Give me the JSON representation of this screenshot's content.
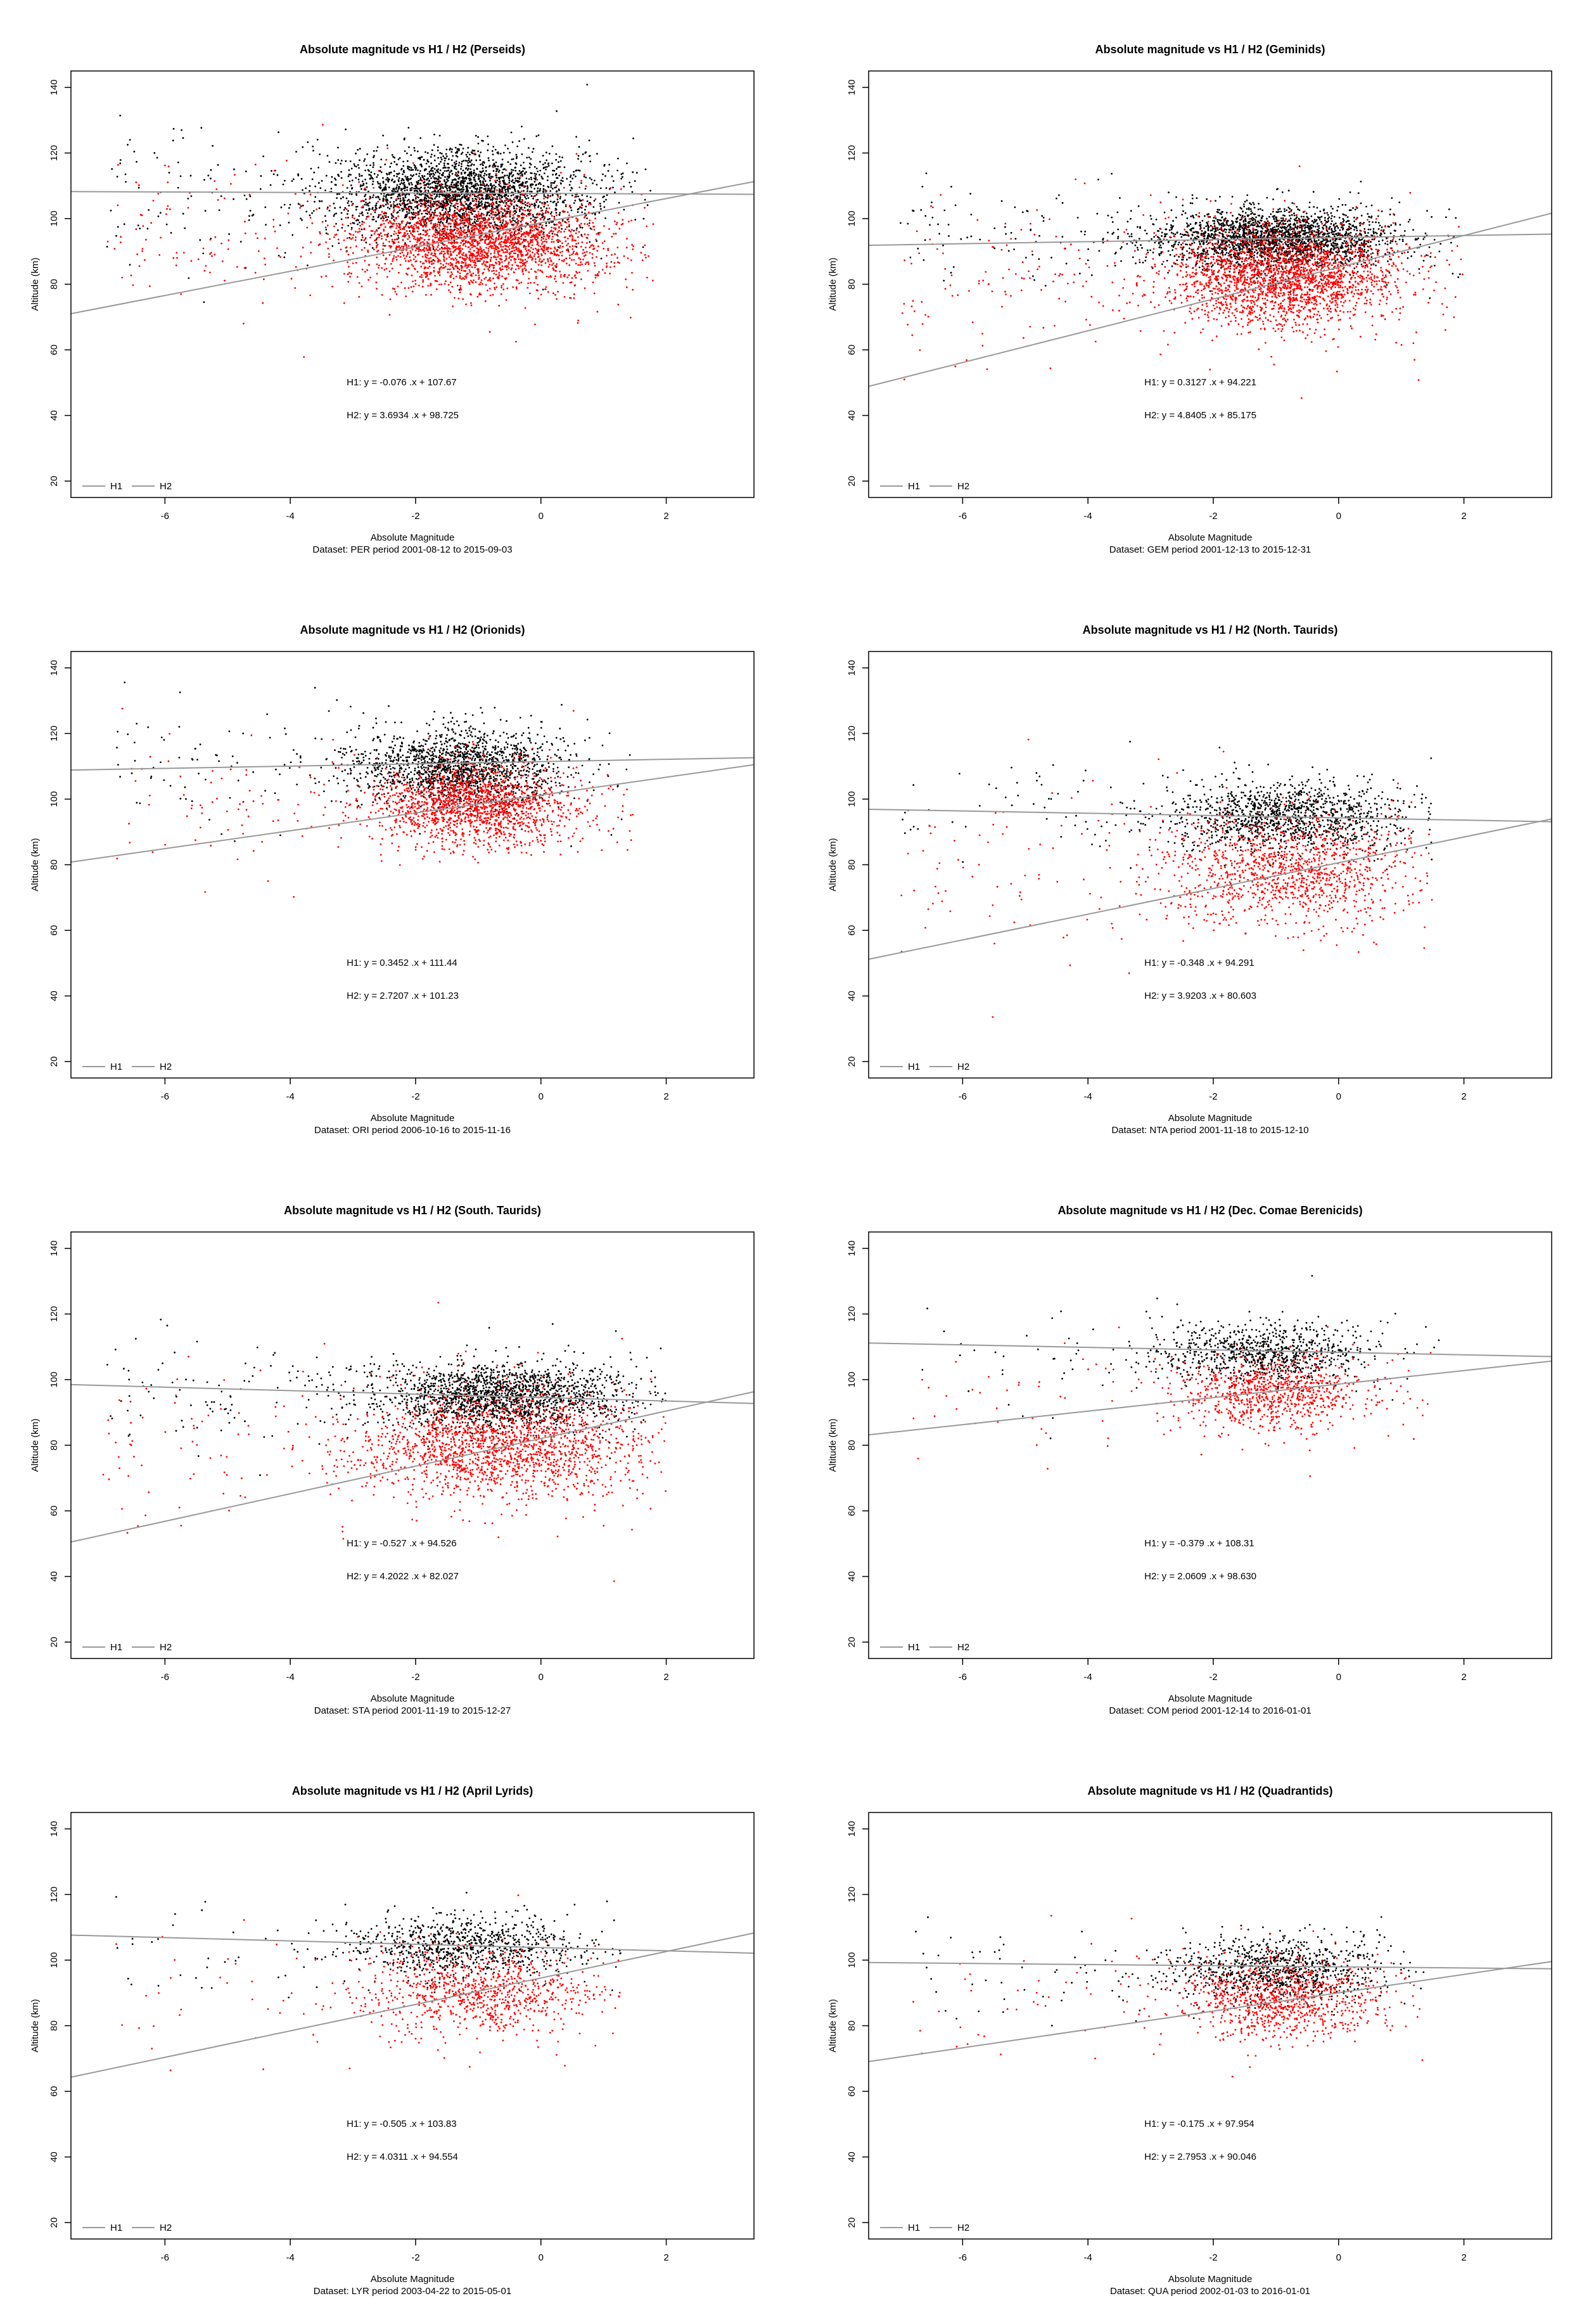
{
  "figure": {
    "panels_per_row": 2,
    "axes": {
      "xlabel": "Absolute Magnitude",
      "ylabel": "Altitude (km)",
      "xlim": [
        -7.5,
        3.4
      ],
      "ylim": [
        15,
        145
      ],
      "xticks": [
        "-6",
        "-4",
        "-2",
        "0",
        "2"
      ],
      "yticks": [
        "20",
        "40",
        "60",
        "80",
        "100",
        "120",
        "140"
      ]
    },
    "legend": {
      "labels": [
        "H1",
        "H2"
      ],
      "colors": [
        "#000000",
        "#ff0000"
      ],
      "line_color": "#999999",
      "position": "bottom-left"
    },
    "colors": {
      "h1_points": "#000000",
      "h2_points": "#ff0000",
      "fit_line": "#999999",
      "frame": "#000000"
    }
  },
  "chart_data": [
    {
      "type": "scatter",
      "title": "Absolute magnitude vs H1 / H2 (Perseids)",
      "dataset": "Dataset: PER period 2001-08-12 to 2015-09-03",
      "eq_h1": "H1: y = -0.076 .x + 107.67",
      "eq_h2": "H2: y = 3.6934 .x + 98.725",
      "fit_h1": {
        "slope": -0.076,
        "intercept": 107.67
      },
      "fit_h2": {
        "slope": 3.6934,
        "intercept": 98.725
      },
      "xlim": [
        -7.5,
        3.4
      ],
      "ylim": [
        15,
        145
      ],
      "cloud_h1": {
        "cx": -1.3,
        "cy": 108,
        "sx": 1.0,
        "sy": 6.5,
        "n": 2600,
        "xmin": -7.0,
        "xmax": 1.8
      },
      "cloud_h2": {
        "cx": -1.0,
        "cy": 93,
        "sx": 1.0,
        "sy": 7,
        "n": 2600,
        "xmin": -7.0,
        "xmax": 1.8
      }
    },
    {
      "type": "scatter",
      "title": "Absolute magnitude vs H1 / H2 (Geminids)",
      "dataset": "Dataset: GEM period 2001-12-13 to 2015-12-31",
      "eq_h1": "H1: y = 0.3127 .x + 94.221",
      "eq_h2": "H2: y = 4.8405 .x + 85.175",
      "fit_h1": {
        "slope": 0.3127,
        "intercept": 94.221
      },
      "fit_h2": {
        "slope": 4.8405,
        "intercept": 85.175
      },
      "xlim": [
        -7.5,
        3.4
      ],
      "ylim": [
        15,
        145
      ],
      "cloud_h1": {
        "cx": -1.0,
        "cy": 94,
        "sx": 0.9,
        "sy": 4.5,
        "n": 2400,
        "xmin": -7.0,
        "xmax": 2.0
      },
      "cloud_h2": {
        "cx": -0.9,
        "cy": 82,
        "sx": 0.9,
        "sy": 7.5,
        "n": 2400,
        "xmin": -7.0,
        "xmax": 2.0
      }
    },
    {
      "type": "scatter",
      "title": "Absolute magnitude vs H1 / H2 (Orionids)",
      "dataset": "Dataset: ORI period 2006-10-16 to 2015-11-16",
      "eq_h1": "H1: y = 0.3452 .x + 111.44",
      "eq_h2": "H2: y = 2.7207 .x + 101.23",
      "fit_h1": {
        "slope": 0.3452,
        "intercept": 111.44
      },
      "fit_h2": {
        "slope": 2.7207,
        "intercept": 101.23
      },
      "xlim": [
        -7.5,
        3.4
      ],
      "ylim": [
        15,
        145
      ],
      "cloud_h1": {
        "cx": -1.3,
        "cy": 110,
        "sx": 0.8,
        "sy": 5.5,
        "n": 1700,
        "xmin": -6.8,
        "xmax": 1.5
      },
      "cloud_h2": {
        "cx": -1.1,
        "cy": 98,
        "sx": 0.8,
        "sy": 6,
        "n": 1700,
        "xmin": -6.8,
        "xmax": 1.5
      }
    },
    {
      "type": "scatter",
      "title": "Absolute magnitude vs H1 / H2 (North. Taurids)",
      "dataset": "Dataset: NTA period 2001-11-18 to 2015-12-10",
      "eq_h1": "H1: y = -0.348 .x + 94.291",
      "eq_h2": "H2: y = 3.9203 .x + 80.603",
      "fit_h1": {
        "slope": -0.348,
        "intercept": 94.291
      },
      "fit_h2": {
        "slope": 3.9203,
        "intercept": 80.603
      },
      "xlim": [
        -7.5,
        3.4
      ],
      "ylim": [
        15,
        145
      ],
      "cloud_h1": {
        "cx": -0.8,
        "cy": 95,
        "sx": 0.9,
        "sy": 5,
        "n": 1300,
        "xmin": -7.0,
        "xmax": 1.5
      },
      "cloud_h2": {
        "cx": -0.8,
        "cy": 78,
        "sx": 1.0,
        "sy": 8,
        "n": 1300,
        "xmin": -7.0,
        "xmax": 1.5
      }
    },
    {
      "type": "scatter",
      "title": "Absolute magnitude vs H1 / H2 (South. Taurids)",
      "dataset": "Dataset: STA period 2001-11-19 to 2015-12-27",
      "eq_h1": "H1: y = -0.527 .x + 94.526",
      "eq_h2": "H2: y = 4.2022 .x + 82.027",
      "fit_h1": {
        "slope": -0.527,
        "intercept": 94.526
      },
      "fit_h2": {
        "slope": 4.2022,
        "intercept": 82.027
      },
      "xlim": [
        -7.5,
        3.4
      ],
      "ylim": [
        15,
        145
      ],
      "cloud_h1": {
        "cx": -0.7,
        "cy": 95,
        "sx": 1.0,
        "sy": 5,
        "n": 1900,
        "xmin": -7.0,
        "xmax": 2.0
      },
      "cloud_h2": {
        "cx": -0.6,
        "cy": 80,
        "sx": 1.1,
        "sy": 8,
        "n": 1900,
        "xmin": -7.0,
        "xmax": 2.0
      }
    },
    {
      "type": "scatter",
      "title": "Absolute magnitude vs H1 / H2 (Dec. Comae Berenicids)",
      "dataset": "Dataset: COM period 2001-12-14 to 2016-01-01",
      "eq_h1": "H1: y = -0.379 .x + 108.31",
      "eq_h2": "H2: y = 2.0609 .x + 98.630",
      "fit_h1": {
        "slope": -0.379,
        "intercept": 108.31
      },
      "fit_h2": {
        "slope": 2.0609,
        "intercept": 98.63
      },
      "xlim": [
        -7.5,
        3.4
      ],
      "ylim": [
        15,
        145
      ],
      "cloud_h1": {
        "cx": -1.2,
        "cy": 108,
        "sx": 0.8,
        "sy": 4.5,
        "n": 900,
        "xmin": -6.8,
        "xmax": 1.6
      },
      "cloud_h2": {
        "cx": -1.1,
        "cy": 96,
        "sx": 0.8,
        "sy": 5.5,
        "n": 900,
        "xmin": -6.8,
        "xmax": 1.6
      }
    },
    {
      "type": "scatter",
      "title": "Absolute magnitude vs H1 / H2 (April Lyrids)",
      "dataset": "Dataset: LYR period 2003-04-22 to 2015-05-01",
      "eq_h1": "H1: y = -0.505 .x + 103.83",
      "eq_h2": "H2: y = 4.0311 .x + 94.554",
      "fit_h1": {
        "slope": -0.505,
        "intercept": 103.83
      },
      "fit_h2": {
        "slope": 4.0311,
        "intercept": 94.554
      },
      "xlim": [
        -7.5,
        3.4
      ],
      "ylim": [
        15,
        145
      ],
      "cloud_h1": {
        "cx": -1.2,
        "cy": 104,
        "sx": 0.9,
        "sy": 4.5,
        "n": 900,
        "xmin": -6.8,
        "xmax": 1.3
      },
      "cloud_h2": {
        "cx": -1.0,
        "cy": 90,
        "sx": 0.9,
        "sy": 6.5,
        "n": 900,
        "xmin": -6.8,
        "xmax": 1.3
      }
    },
    {
      "type": "scatter",
      "title": "Absolute magnitude vs H1 / H2 (Quadrantids)",
      "dataset": "Dataset: QUA period 2002-01-03 to 2016-01-01",
      "eq_h1": "H1: y = -0.175 .x + 97.954",
      "eq_h2": "H2: y = 2.7953 .x + 90.046",
      "fit_h1": {
        "slope": -0.175,
        "intercept": 97.954
      },
      "fit_h2": {
        "slope": 2.7953,
        "intercept": 90.046
      },
      "xlim": [
        -7.5,
        3.4
      ],
      "ylim": [
        15,
        145
      ],
      "cloud_h1": {
        "cx": -1.0,
        "cy": 97,
        "sx": 0.8,
        "sy": 4.5,
        "n": 1000,
        "xmin": -6.8,
        "xmax": 1.4
      },
      "cloud_h2": {
        "cx": -0.9,
        "cy": 88,
        "sx": 0.8,
        "sy": 6.0,
        "n": 1000,
        "xmin": -6.8,
        "xmax": 1.4
      }
    }
  ]
}
